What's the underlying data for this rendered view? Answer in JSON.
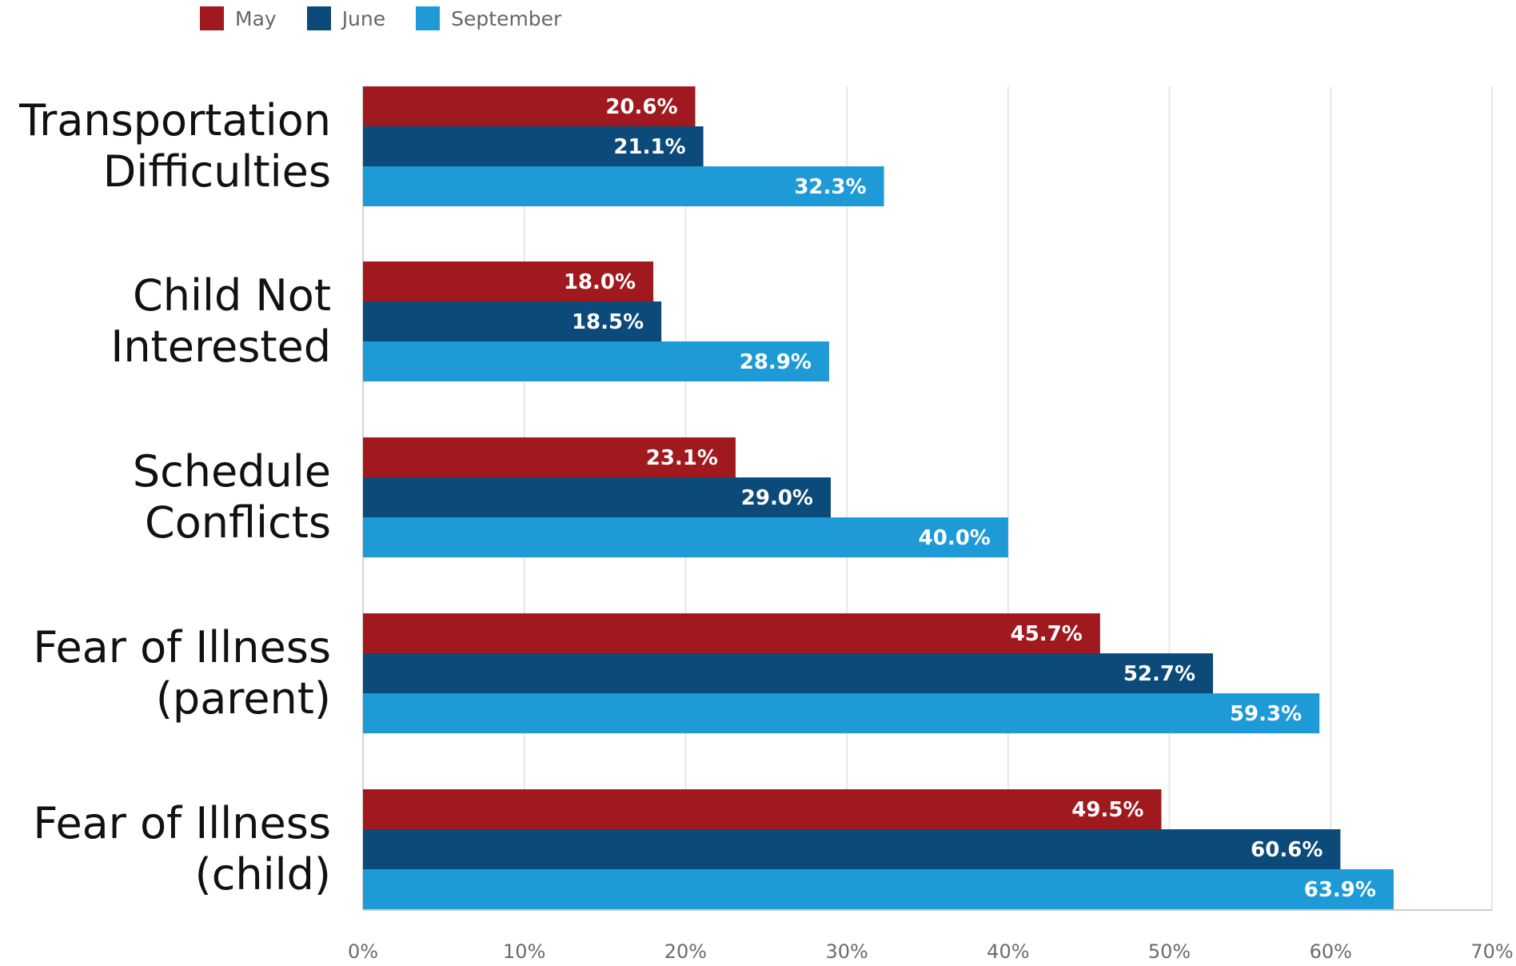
{
  "chart_data": {
    "type": "bar",
    "orientation": "horizontal",
    "categories": [
      [
        "Transportation",
        "Difficulties"
      ],
      [
        "Child Not",
        "Interested"
      ],
      [
        "Schedule",
        "Conflicts"
      ],
      [
        "Fear of Illness",
        "(parent)"
      ],
      [
        "Fear of Illness",
        "(child)"
      ]
    ],
    "series": [
      {
        "name": "May",
        "color": "#A0191F",
        "values": [
          20.6,
          18.0,
          23.1,
          45.7,
          49.5
        ],
        "labels": [
          "20.6%",
          "18.0%",
          "23.1%",
          "45.7%",
          "49.5%"
        ]
      },
      {
        "name": "June",
        "color": "#0C4A7A",
        "values": [
          21.1,
          18.5,
          29.0,
          52.7,
          60.6
        ],
        "labels": [
          "21.1%",
          "18.5%",
          "29.0%",
          "52.7%",
          "60.6%"
        ]
      },
      {
        "name": "September",
        "color": "#1E9AD6",
        "values": [
          32.3,
          28.9,
          40.0,
          59.3,
          63.9
        ],
        "labels": [
          "32.3%",
          "28.9%",
          "40.0%",
          "59.3%",
          "63.9%"
        ]
      }
    ],
    "xlim": [
      0,
      70
    ],
    "xticks": [
      "0%",
      "10%",
      "20%",
      "30%",
      "40%",
      "50%",
      "60%",
      "70%"
    ],
    "grid": true,
    "legend_position": "top-left",
    "title": "",
    "xlabel": "",
    "ylabel": ""
  }
}
